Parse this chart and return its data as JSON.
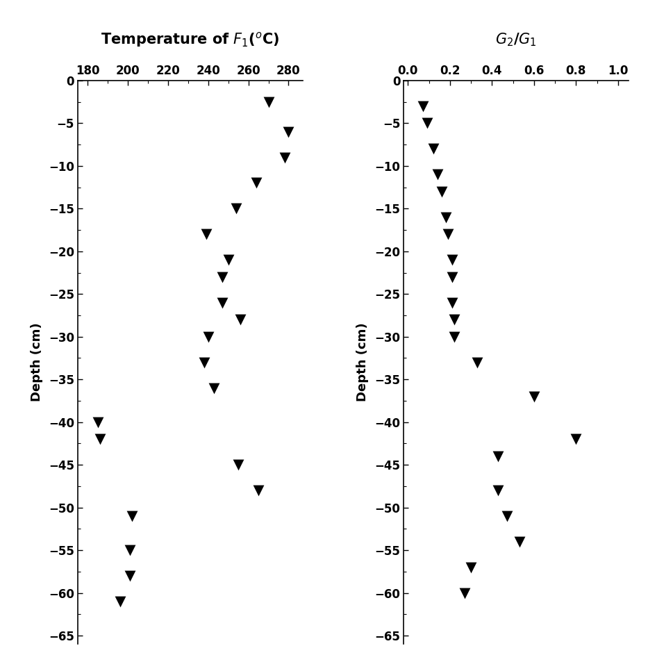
{
  "left_title": "Temperature of $F_1$($^o$C)",
  "right_title": "$G_2$/$G_1$",
  "ylabel": "Depth (cm)",
  "left_xlim": [
    175,
    287
  ],
  "left_xticks": [
    180,
    200,
    220,
    240,
    260,
    280
  ],
  "right_xlim": [
    -0.02,
    1.05
  ],
  "right_xticks": [
    0.0,
    0.2,
    0.4,
    0.6,
    0.8,
    1.0
  ],
  "ylim": [
    -66,
    0
  ],
  "yticks": [
    0,
    -5,
    -10,
    -15,
    -20,
    -25,
    -30,
    -35,
    -40,
    -45,
    -50,
    -55,
    -60,
    -65
  ],
  "left_data": {
    "depth": [
      -2.5,
      -6,
      -9,
      -12,
      -15,
      -18,
      -21,
      -23,
      -26,
      -28,
      -30,
      -33,
      -36,
      -40,
      -42,
      -45,
      -48,
      -51,
      -55,
      -58,
      -61
    ],
    "temp": [
      270,
      280,
      278,
      264,
      254,
      239,
      250,
      247,
      247,
      256,
      240,
      238,
      243,
      185,
      186,
      255,
      265,
      202,
      201,
      201,
      196
    ]
  },
  "right_data": {
    "depth": [
      -3,
      -5,
      -8,
      -11,
      -13,
      -16,
      -18,
      -21,
      -23,
      -26,
      -28,
      -30,
      -33,
      -37,
      -42,
      -44,
      -48,
      -51,
      -54,
      -57,
      -60
    ],
    "ratio": [
      0.07,
      0.09,
      0.12,
      0.14,
      0.16,
      0.18,
      0.19,
      0.21,
      0.21,
      0.21,
      0.22,
      0.22,
      0.33,
      0.6,
      0.8,
      0.43,
      0.43,
      0.47,
      0.53,
      0.3,
      0.27
    ]
  },
  "marker_color": "black",
  "marker_size": 130,
  "background_color": "white",
  "title_fontsize": 15,
  "label_fontsize": 13,
  "tick_fontsize": 12
}
